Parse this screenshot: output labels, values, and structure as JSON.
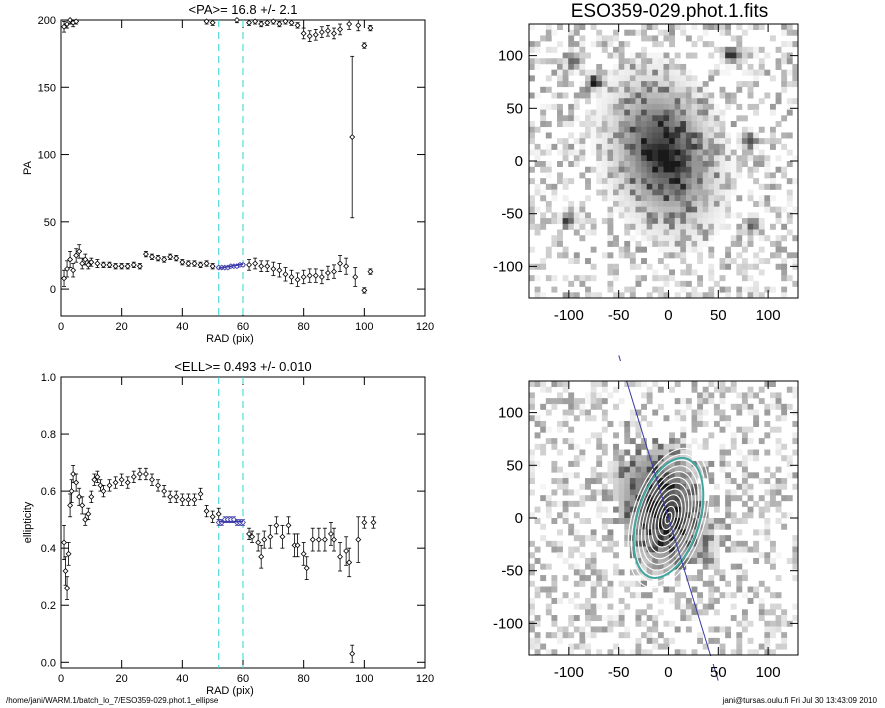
{
  "chart_data": [
    {
      "type": "scatter",
      "title": "<PA>=  16.8 +/-   2.1",
      "xlabel": "RAD (pix)",
      "ylabel": "PA",
      "xlim": [
        0,
        120
      ],
      "ylim": [
        -20,
        200
      ],
      "xticks": [
        0,
        20,
        40,
        60,
        80,
        100,
        120
      ],
      "yticks": [
        0,
        50,
        100,
        150,
        200
      ],
      "vlines": [
        52,
        60
      ],
      "fit_segment": {
        "x": [
          52,
          60
        ],
        "y": [
          15.5,
          18.5
        ]
      },
      "series": [
        {
          "name": "PA lower branch",
          "points": [
            [
              1,
              8,
              6
            ],
            [
              2,
              15,
              6
            ],
            [
              3,
              22,
              6
            ],
            [
              4,
              14,
              5
            ],
            [
              5,
              25,
              5
            ],
            [
              6,
              28,
              5
            ],
            [
              7,
              19,
              4
            ],
            [
              8,
              22,
              4
            ],
            [
              9,
              18,
              3
            ],
            [
              10,
              20,
              3
            ],
            [
              12,
              19,
              3
            ],
            [
              14,
              18,
              2
            ],
            [
              16,
              18,
              2
            ],
            [
              18,
              17,
              2
            ],
            [
              20,
              17,
              2
            ],
            [
              22,
              17,
              2
            ],
            [
              24,
              18,
              2
            ],
            [
              26,
              17,
              2
            ],
            [
              28,
              26,
              2
            ],
            [
              30,
              24,
              2
            ],
            [
              32,
              23,
              2
            ],
            [
              34,
              22,
              2
            ],
            [
              36,
              24,
              2
            ],
            [
              38,
              23,
              2
            ],
            [
              40,
              20,
              2
            ],
            [
              42,
              19,
              2
            ],
            [
              44,
              19,
              2
            ],
            [
              46,
              18,
              2
            ],
            [
              48,
              19,
              2
            ],
            [
              50,
              17,
              2
            ],
            [
              62,
              18,
              4
            ],
            [
              64,
              19,
              4
            ],
            [
              66,
              17,
              4
            ],
            [
              68,
              17,
              4
            ],
            [
              70,
              15,
              5
            ],
            [
              72,
              14,
              5
            ],
            [
              74,
              11,
              5
            ],
            [
              76,
              9,
              5
            ],
            [
              78,
              7,
              5
            ],
            [
              80,
              9,
              5
            ],
            [
              82,
              10,
              5
            ],
            [
              84,
              10,
              5
            ],
            [
              86,
              9,
              5
            ],
            [
              88,
              12,
              5
            ],
            [
              90,
              13,
              5
            ],
            [
              92,
              19,
              6
            ],
            [
              94,
              17,
              6
            ],
            [
              97,
              9,
              7
            ],
            [
              100,
              -1,
              2
            ],
            [
              102,
              13,
              2
            ]
          ]
        },
        {
          "name": "PA upper branch",
          "points": [
            [
              1,
              195,
              4
            ],
            [
              2,
              197,
              3
            ],
            [
              3,
              200,
              3
            ],
            [
              4,
              198,
              3
            ],
            [
              5,
              199,
              2
            ],
            [
              48,
              199,
              2
            ],
            [
              50,
              198,
              2
            ],
            [
              58,
              200,
              2
            ],
            [
              62,
              198,
              2
            ],
            [
              64,
              199,
              2
            ],
            [
              66,
              197,
              2
            ],
            [
              68,
              198,
              2
            ],
            [
              70,
              199,
              2
            ],
            [
              72,
              197,
              2
            ],
            [
              74,
              199,
              2
            ],
            [
              76,
              198,
              2
            ],
            [
              78,
              196,
              2
            ],
            [
              80,
              190,
              4
            ],
            [
              82,
              188,
              4
            ],
            [
              84,
              189,
              4
            ],
            [
              86,
              191,
              4
            ],
            [
              88,
              192,
              4
            ],
            [
              90,
              190,
              4
            ],
            [
              92,
              193,
              4
            ],
            [
              95,
              197,
              4
            ],
            [
              98,
              196,
              4
            ],
            [
              100,
              181,
              2
            ],
            [
              102,
              194,
              2
            ]
          ]
        },
        {
          "name": "PA outlier",
          "points": [
            [
              96,
              113,
              60
            ]
          ]
        },
        {
          "name": "PA fitted region",
          "points": [
            [
              52,
              16,
              1
            ],
            [
              53,
              16,
              1
            ],
            [
              54,
              16,
              1
            ],
            [
              55,
              16,
              1
            ],
            [
              56,
              17,
              1
            ],
            [
              57,
              17,
              1
            ],
            [
              58,
              17,
              1
            ],
            [
              59,
              18,
              1
            ],
            [
              60,
              18,
              1
            ]
          ]
        }
      ]
    },
    {
      "type": "scatter",
      "title": "<ELL>= 0.493 +/-  0.010",
      "xlabel": "RAD (pix)",
      "ylabel": "ellipticity",
      "xlim": [
        0,
        120
      ],
      "ylim": [
        -0.02,
        1.0
      ],
      "xticks": [
        0,
        20,
        40,
        60,
        80,
        100,
        120
      ],
      "yticks": [
        0.0,
        0.2,
        0.4,
        0.6,
        0.8,
        1.0
      ],
      "vlines": [
        52,
        60
      ],
      "fit_segment": {
        "x": [
          52,
          60
        ],
        "y": [
          0.493,
          0.493
        ]
      },
      "series": [
        {
          "name": "ellipticity",
          "points": [
            [
              1,
              0.42,
              0.06
            ],
            [
              1.5,
              0.32,
              0.05
            ],
            [
              2,
              0.26,
              0.04
            ],
            [
              2.5,
              0.38,
              0.04
            ],
            [
              3,
              0.55,
              0.04
            ],
            [
              3.5,
              0.6,
              0.04
            ],
            [
              4,
              0.66,
              0.03
            ],
            [
              5,
              0.63,
              0.03
            ],
            [
              6,
              0.58,
              0.03
            ],
            [
              7,
              0.55,
              0.03
            ],
            [
              8,
              0.5,
              0.02
            ],
            [
              9,
              0.52,
              0.02
            ],
            [
              10,
              0.58,
              0.02
            ],
            [
              11,
              0.64,
              0.02
            ],
            [
              12,
              0.65,
              0.02
            ],
            [
              13,
              0.62,
              0.02
            ],
            [
              14,
              0.6,
              0.02
            ],
            [
              16,
              0.62,
              0.02
            ],
            [
              18,
              0.63,
              0.02
            ],
            [
              20,
              0.64,
              0.02
            ],
            [
              22,
              0.63,
              0.02
            ],
            [
              24,
              0.65,
              0.02
            ],
            [
              26,
              0.66,
              0.02
            ],
            [
              28,
              0.66,
              0.02
            ],
            [
              30,
              0.64,
              0.02
            ],
            [
              32,
              0.62,
              0.02
            ],
            [
              34,
              0.6,
              0.02
            ],
            [
              36,
              0.58,
              0.02
            ],
            [
              38,
              0.58,
              0.02
            ],
            [
              40,
              0.57,
              0.02
            ],
            [
              42,
              0.57,
              0.02
            ],
            [
              44,
              0.57,
              0.02
            ],
            [
              46,
              0.59,
              0.02
            ],
            [
              48,
              0.53,
              0.02
            ],
            [
              50,
              0.51,
              0.02
            ],
            [
              52,
              0.52,
              0.02
            ],
            [
              62,
              0.45,
              0.02
            ],
            [
              63,
              0.44,
              0.02
            ],
            [
              65,
              0.42,
              0.03
            ],
            [
              66,
              0.37,
              0.04
            ],
            [
              67,
              0.43,
              0.03
            ],
            [
              69,
              0.44,
              0.04
            ],
            [
              71,
              0.48,
              0.03
            ],
            [
              73,
              0.44,
              0.04
            ],
            [
              75,
              0.48,
              0.03
            ],
            [
              77,
              0.41,
              0.04
            ],
            [
              78,
              0.41,
              0.04
            ],
            [
              80,
              0.38,
              0.04
            ],
            [
              81,
              0.33,
              0.04
            ],
            [
              83,
              0.43,
              0.04
            ],
            [
              85,
              0.43,
              0.04
            ],
            [
              87,
              0.43,
              0.04
            ],
            [
              89,
              0.45,
              0.04
            ],
            [
              90,
              0.43,
              0.04
            ],
            [
              92,
              0.37,
              0.05
            ],
            [
              94,
              0.39,
              0.05
            ],
            [
              95,
              0.35,
              0.05
            ],
            [
              96,
              0.03,
              0.03
            ],
            [
              98,
              0.43,
              0.08
            ],
            [
              100,
              0.49,
              0.02
            ],
            [
              103,
              0.49,
              0.02
            ]
          ]
        },
        {
          "name": "ellipticity fitted region",
          "points": [
            [
              52,
              0.49,
              0.01
            ],
            [
              53,
              0.49,
              0.01
            ],
            [
              54,
              0.5,
              0.01
            ],
            [
              55,
              0.5,
              0.01
            ],
            [
              56,
              0.5,
              0.01
            ],
            [
              57,
              0.5,
              0.01
            ],
            [
              58,
              0.49,
              0.01
            ],
            [
              59,
              0.49,
              0.01
            ],
            [
              60,
              0.49,
              0.01
            ]
          ]
        }
      ]
    },
    {
      "type": "heatmap",
      "title": "ESO359-029.phot.1.fits",
      "xlim": [
        -140,
        130
      ],
      "ylim": [
        -130,
        130
      ],
      "xticks": [
        -100,
        -50,
        0,
        50,
        100
      ],
      "yticks": [
        -100,
        -50,
        0,
        50,
        100
      ],
      "sources": [
        [
          -95,
          95
        ],
        [
          -75,
          75
        ],
        [
          62,
          100
        ],
        [
          80,
          20
        ],
        [
          -100,
          -55
        ],
        [
          85,
          -60
        ],
        [
          -5,
          5
        ]
      ]
    },
    {
      "type": "heatmap",
      "title": "",
      "xlim": [
        -140,
        130
      ],
      "ylim": [
        -130,
        130
      ],
      "xticks": [
        -100,
        -50,
        0,
        50,
        100
      ],
      "yticks": [
        -100,
        -50,
        0,
        50,
        100
      ],
      "major_axis_pa": 17,
      "contour_levels": 12
    }
  ],
  "footer": {
    "path": "/home/jani/WARM.1/batch_lo_7/ESO359-029.phot.1_ellipse",
    "stamp": "jani@tursas.oulu.fi  Fri Jul 30 13:43:09 2010"
  },
  "colors": {
    "vline": "#2fd5d5",
    "fit": "#3a3aa8",
    "contour": "#ffffff",
    "fit_ellipse": "#3ea7a0",
    "points": "#000000"
  }
}
